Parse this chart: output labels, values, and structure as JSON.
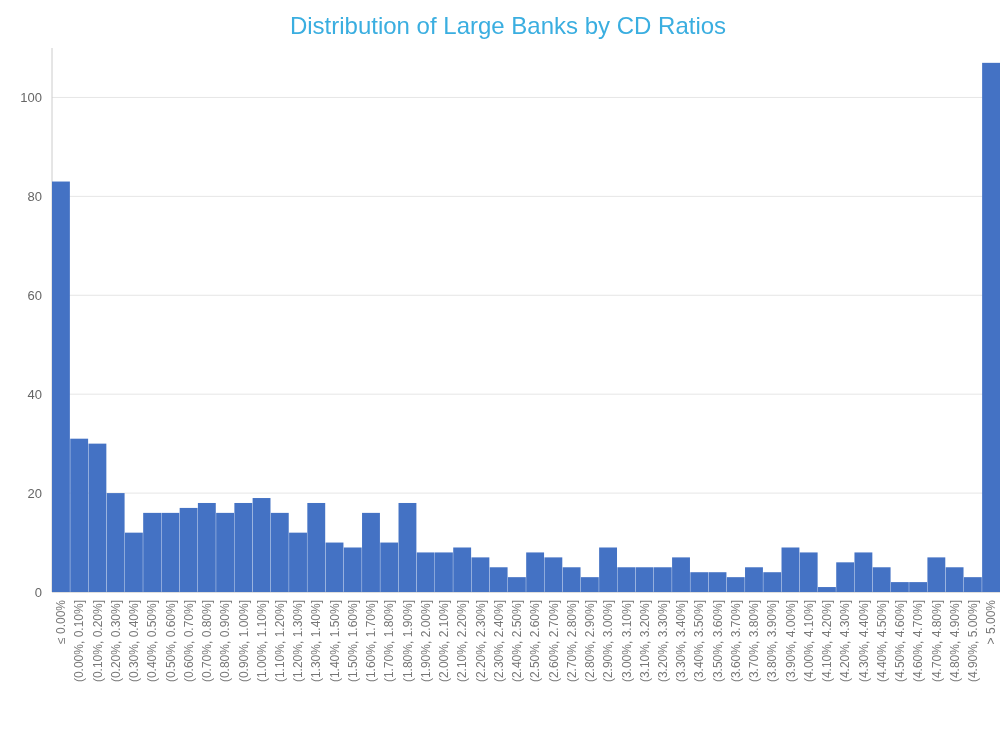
{
  "chart_data": {
    "type": "bar",
    "title": "Distribution of Large Banks by CD Ratios",
    "categories": [
      "≤ 0.00%",
      "(0.00%, 0.10%]",
      "(0.10%, 0.20%]",
      "(0.20%, 0.30%]",
      "(0.30%, 0.40%]",
      "(0.40%, 0.50%]",
      "(0.50%, 0.60%]",
      "(0.60%, 0.70%]",
      "(0.70%, 0.80%]",
      "(0.80%, 0.90%]",
      "(0.90%, 1.00%]",
      "(1.00%, 1.10%]",
      "(1.10%, 1.20%]",
      "(1.20%, 1.30%]",
      "(1.30%, 1.40%]",
      "(1.40%, 1.50%]",
      "(1.50%, 1.60%]",
      "(1.60%, 1.70%]",
      "(1.70%, 1.80%]",
      "(1.80%, 1.90%]",
      "(1.90%, 2.00%]",
      "(2.00%, 2.10%]",
      "(2.10%, 2.20%]",
      "(2.20%, 2.30%]",
      "(2.30%, 2.40%]",
      "(2.40%, 2.50%]",
      "(2.50%, 2.60%]",
      "(2.60%, 2.70%]",
      "(2.70%, 2.80%]",
      "(2.80%, 2.90%]",
      "(2.90%, 3.00%]",
      "(3.00%, 3.10%]",
      "(3.10%, 3.20%]",
      "(3.20%, 3.30%]",
      "(3.30%, 3.40%]",
      "(3.40%, 3.50%]",
      "(3.50%, 3.60%]",
      "(3.60%, 3.70%]",
      "(3.70%, 3.80%]",
      "(3.80%, 3.90%]",
      "(3.90%, 4.00%]",
      "(4.00%, 4.10%]",
      "(4.10%, 4.20%]",
      "(4.20%, 4.30%]",
      "(4.30%, 4.40%]",
      "(4.40%, 4.50%]",
      "(4.50%, 4.60%]",
      "(4.60%, 4.70%]",
      "(4.70%, 4.80%]",
      "(4.80%, 4.90%]",
      "(4.90%, 5.00%]",
      "> 5.00%"
    ],
    "values": [
      83,
      31,
      30,
      20,
      12,
      16,
      16,
      17,
      18,
      16,
      18,
      19,
      16,
      12,
      18,
      10,
      9,
      16,
      10,
      18,
      8,
      8,
      9,
      7,
      5,
      3,
      8,
      7,
      5,
      3,
      9,
      5,
      5,
      5,
      7,
      4,
      4,
      3,
      5,
      4,
      9,
      8,
      1,
      6,
      8,
      5,
      2,
      2,
      7,
      5,
      3,
      107
    ],
    "color": "#4472c4",
    "ylim": [
      0,
      110
    ],
    "yticks": [
      0,
      20,
      40,
      60,
      80,
      100
    ],
    "grid": "y"
  }
}
